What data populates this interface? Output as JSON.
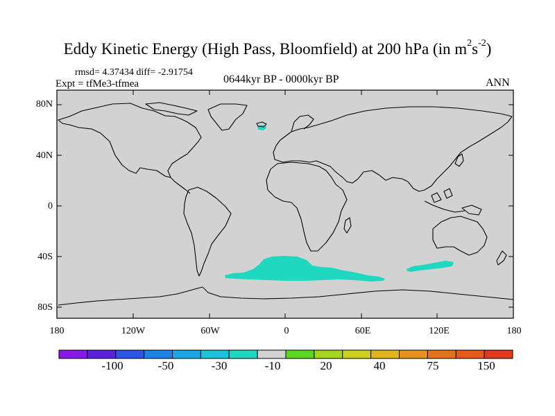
{
  "title": {
    "text": "Eddy Kinetic Energy (High Pass, Bloomfield) at 200 hPa (in m",
    "sup1": "2",
    "mid": "s",
    "sup2": "-2",
    "end": ")"
  },
  "stats": "rmsd= 4.37434 diff= -2.91754",
  "experiment": "Expt = tfMe3-tfmea",
  "period": "0644kyr BP - 0000kyr BP",
  "season": "ANN",
  "axes": {
    "y_ticks": [
      "80N",
      "40N",
      "0",
      "40S",
      "80S"
    ],
    "x_ticks": [
      "180",
      "120W",
      "60W",
      "0",
      "60E",
      "120E",
      "180"
    ]
  },
  "colors": {
    "ocean": "#d2d2d2",
    "anomaly_fill": "#1fd8bf",
    "coast": "#000000"
  },
  "colorbar": {
    "colors": [
      "#8a18e8",
      "#5a22e0",
      "#2a55e6",
      "#1c82e4",
      "#1ca6e4",
      "#1cc2dc",
      "#1ed8c4",
      "#d2d2d2",
      "#5cd61e",
      "#a6d61c",
      "#ccd21c",
      "#e4b41c",
      "#e4941c",
      "#e4741c",
      "#e45a1c",
      "#e23a1a"
    ],
    "labels": [
      "-100",
      "-50",
      "-30",
      "-10",
      "20",
      "40",
      "75",
      "150"
    ]
  }
}
